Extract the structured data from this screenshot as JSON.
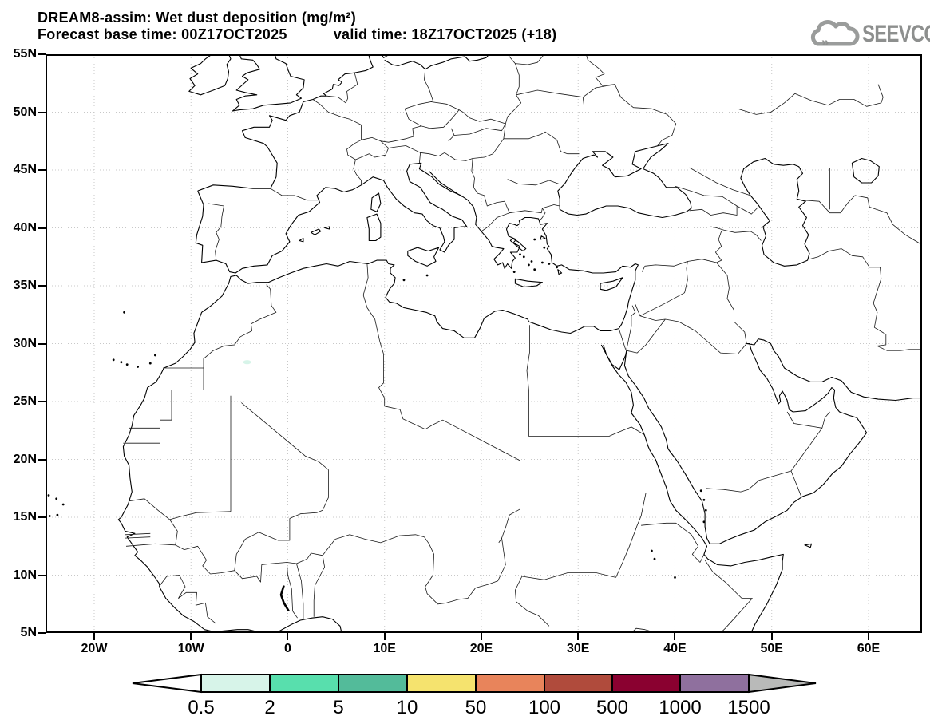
{
  "header": {
    "title_line1": "DREAM8-assim: Wet dust deposition (mg/m²)",
    "forecast_base_label": "Forecast base time: 00Z17OCT2025",
    "valid_time_label": "valid time: 18Z17OCT2025 (+18)"
  },
  "logo": {
    "text": "SEEVCCC",
    "icon": "cloud-with-arrows",
    "color": "#8d8f8e"
  },
  "map": {
    "lat_ticks": [
      {
        "label": "55N",
        "lat": 55
      },
      {
        "label": "50N",
        "lat": 50
      },
      {
        "label": "45N",
        "lat": 45
      },
      {
        "label": "40N",
        "lat": 40
      },
      {
        "label": "35N",
        "lat": 35
      },
      {
        "label": "30N",
        "lat": 30
      },
      {
        "label": "25N",
        "lat": 25
      },
      {
        "label": "20N",
        "lat": 20
      },
      {
        "label": "15N",
        "lat": 15
      },
      {
        "label": "10N",
        "lat": 10
      },
      {
        "label": "5N",
        "lat": 5
      }
    ],
    "lon_ticks": [
      {
        "label": "20W",
        "lon": -20
      },
      {
        "label": "10W",
        "lon": -10
      },
      {
        "label": "0",
        "lon": 0
      },
      {
        "label": "10E",
        "lon": 10
      },
      {
        "label": "20E",
        "lon": 20
      },
      {
        "label": "30E",
        "lon": 30
      },
      {
        "label": "40E",
        "lon": 40
      },
      {
        "label": "50E",
        "lon": 50
      },
      {
        "label": "60E",
        "lon": 60
      }
    ],
    "extent": {
      "lon_min": -25,
      "lon_max": 65.5,
      "lat_min": 5,
      "lat_max": 55
    },
    "graticule": {
      "lat_step_deg": 5,
      "lon_step_deg": 10
    }
  },
  "colorbar": {
    "tick_labels": [
      "0.5",
      "2",
      "5",
      "10",
      "50",
      "100",
      "500",
      "1000",
      "1500"
    ],
    "segment_colors": [
      "#d7f4e9",
      "#58dfad",
      "#53bb9a",
      "#f5e36e",
      "#e8845b",
      "#b04b3c",
      "#8a0130",
      "#8f709e"
    ],
    "below_min_color": "#ffffff",
    "above_max_color": "#b9bab9"
  },
  "deposition": {
    "units": "mg/m²",
    "spots": [
      {
        "lon": -4.2,
        "lat": 28.4,
        "category": "0.5-2"
      }
    ]
  }
}
